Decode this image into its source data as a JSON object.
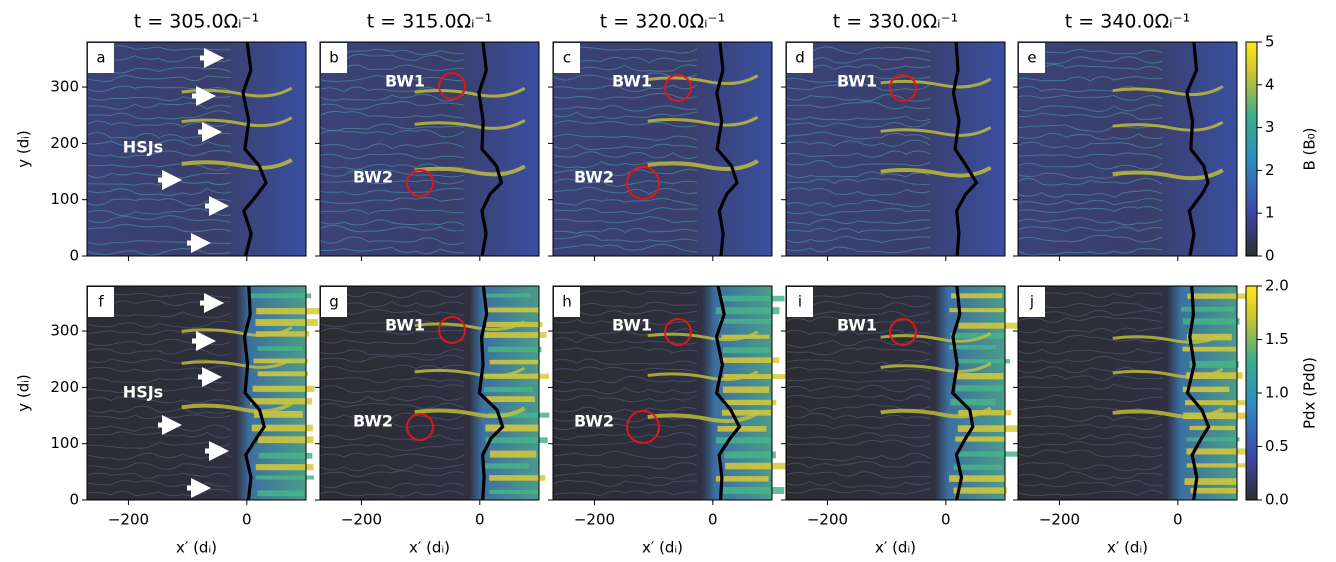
{
  "figure": {
    "columns": [
      "t = 305.0Ωᵢ⁻¹",
      "t = 315.0Ωᵢ⁻¹",
      "t = 320.0Ωᵢ⁻¹",
      "t = 330.0Ωᵢ⁻¹",
      "t = 340.0Ωᵢ⁻¹"
    ],
    "xlabel": "x′ (dᵢ)",
    "xlim": [
      -270,
      100
    ],
    "xticks": [
      {
        "value": -200,
        "label": "−200"
      },
      0
    ],
    "ylim": [
      0,
      380
    ],
    "yticks": [
      0,
      100,
      200,
      300
    ],
    "rows": [
      {
        "ylabel": "y (dᵢ)",
        "colorbar": {
          "label": "B (B₀)",
          "lim": [
            0,
            5
          ],
          "ticks": [
            0,
            1,
            2,
            3,
            4,
            5
          ]
        },
        "panels": [
          {
            "label": "a",
            "annotations": [
              "HSJs"
            ]
          },
          {
            "label": "b",
            "annotations": [
              "BW1",
              "BW2"
            ]
          },
          {
            "label": "c",
            "annotations": [
              "BW1",
              "BW2"
            ]
          },
          {
            "label": "d",
            "annotations": [
              "BW1"
            ]
          },
          {
            "label": "e",
            "annotations": []
          }
        ]
      },
      {
        "ylabel": "y (dᵢ)",
        "colorbar": {
          "label": "Pdx (Pd0)",
          "lim": [
            0,
            2
          ],
          "ticks": [
            {
              "value": 0,
              "label": "0.0"
            },
            {
              "value": 0.5,
              "label": "0.5"
            },
            {
              "value": 1,
              "label": "1.0"
            },
            {
              "value": 1.5,
              "label": "1.5"
            },
            {
              "value": 2,
              "label": "2.0"
            }
          ]
        },
        "panels": [
          {
            "label": "f",
            "annotations": [
              "HSJs"
            ]
          },
          {
            "label": "g",
            "annotations": [
              "BW1",
              "BW2"
            ]
          },
          {
            "label": "h",
            "annotations": [
              "BW1",
              "BW2"
            ]
          },
          {
            "label": "i",
            "annotations": [
              "BW1"
            ]
          },
          {
            "label": "j",
            "annotations": []
          }
        ]
      }
    ]
  }
}
